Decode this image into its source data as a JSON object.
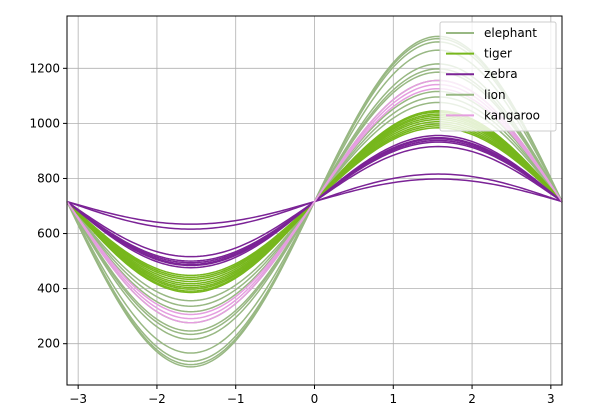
{
  "chart_data": {
    "type": "line",
    "title": "",
    "xlabel": "",
    "ylabel": "",
    "xlim": [
      -3.14159,
      3.14159
    ],
    "ylim": [
      50,
      1390
    ],
    "grid": true,
    "legend_position": "top-right",
    "x_ticks": [
      {
        "value": -3,
        "label": "−3"
      },
      {
        "value": -2,
        "label": "−2"
      },
      {
        "value": -1,
        "label": "−1"
      },
      {
        "value": 0,
        "label": "0"
      },
      {
        "value": 1,
        "label": "1"
      },
      {
        "value": 2,
        "label": "2"
      },
      {
        "value": 3,
        "label": "3"
      }
    ],
    "y_ticks": [
      {
        "value": 200,
        "label": "200"
      },
      {
        "value": 400,
        "label": "400"
      },
      {
        "value": 600,
        "label": "600"
      },
      {
        "value": 800,
        "label": "800"
      },
      {
        "value": 1000,
        "label": "1000"
      },
      {
        "value": 1200,
        "label": "1200"
      }
    ],
    "series": [
      {
        "name": "elephant",
        "color": "#98b883",
        "curves": [
          {
            "offset": 716,
            "sin_amp": 600,
            "cos_amp": 0
          },
          {
            "offset": 716,
            "sin_amp": 592,
            "cos_amp": 0
          },
          {
            "offset": 716,
            "sin_amp": 580,
            "cos_amp": 0
          },
          {
            "offset": 716,
            "sin_amp": 550,
            "cos_amp": 0
          },
          {
            "offset": 716,
            "sin_amp": 500,
            "cos_amp": 0
          },
          {
            "offset": 716,
            "sin_amp": 482,
            "cos_amp": 0
          },
          {
            "offset": 716,
            "sin_amp": 470,
            "cos_amp": 0
          },
          {
            "offset": 716,
            "sin_amp": 440,
            "cos_amp": 0
          },
          {
            "offset": 716,
            "sin_amp": 400,
            "cos_amp": 0
          },
          {
            "offset": 716,
            "sin_amp": 380,
            "cos_amp": 0
          },
          {
            "offset": 716,
            "sin_amp": 360,
            "cos_amp": 0
          }
        ]
      },
      {
        "name": "tiger",
        "color": "#77b71c",
        "curves": [
          {
            "offset": 716,
            "sin_amp": 330,
            "cos_amp": 0
          },
          {
            "offset": 716,
            "sin_amp": 325,
            "cos_amp": 0
          },
          {
            "offset": 716,
            "sin_amp": 318,
            "cos_amp": 0
          },
          {
            "offset": 716,
            "sin_amp": 312,
            "cos_amp": 0
          },
          {
            "offset": 716,
            "sin_amp": 305,
            "cos_amp": 0
          },
          {
            "offset": 716,
            "sin_amp": 298,
            "cos_amp": 0
          },
          {
            "offset": 716,
            "sin_amp": 290,
            "cos_amp": 0
          },
          {
            "offset": 716,
            "sin_amp": 282,
            "cos_amp": 0
          },
          {
            "offset": 716,
            "sin_amp": 275,
            "cos_amp": 0
          },
          {
            "offset": 716,
            "sin_amp": 268,
            "cos_amp": 0
          }
        ]
      },
      {
        "name": "zebra",
        "color": "#7b2396",
        "curves": [
          {
            "offset": 716,
            "sin_amp": 240,
            "cos_amp": 0
          },
          {
            "offset": 716,
            "sin_amp": 232,
            "cos_amp": 0
          },
          {
            "offset": 716,
            "sin_amp": 228,
            "cos_amp": 0
          },
          {
            "offset": 716,
            "sin_amp": 222,
            "cos_amp": 0
          },
          {
            "offset": 716,
            "sin_amp": 216,
            "cos_amp": 0
          },
          {
            "offset": 716,
            "sin_amp": 200,
            "cos_amp": 0
          },
          {
            "offset": 716,
            "sin_amp": 100,
            "cos_amp": 0
          },
          {
            "offset": 716,
            "sin_amp": 82,
            "cos_amp": 0
          }
        ]
      },
      {
        "name": "lion",
        "color": "#98b883",
        "curves": []
      },
      {
        "name": "kangaroo",
        "color": "#e59ee0",
        "curves": [
          {
            "offset": 716,
            "sin_amp": 440,
            "cos_amp": 0
          },
          {
            "offset": 716,
            "sin_amp": 425,
            "cos_amp": 0
          },
          {
            "offset": 716,
            "sin_amp": 410,
            "cos_amp": 0
          }
        ]
      }
    ]
  }
}
